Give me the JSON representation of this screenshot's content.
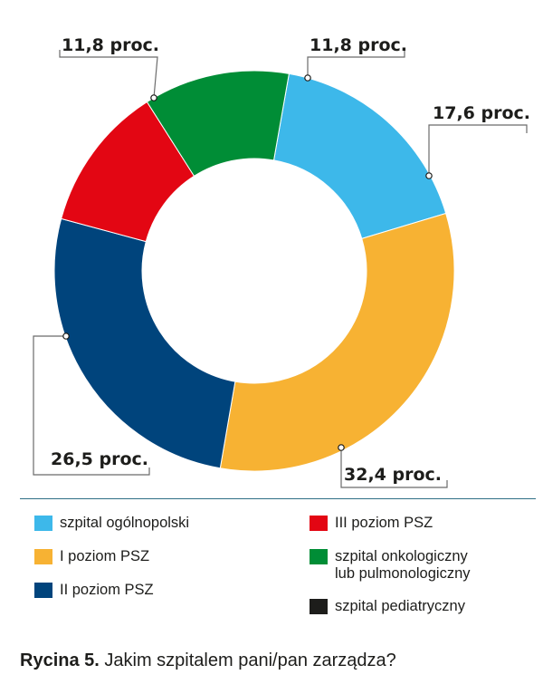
{
  "chart_data": {
    "type": "pie",
    "variant": "donut",
    "slices": [
      {
        "name": "szpital ogólnopolski",
        "value": 17.6,
        "label": "17,6 proc.",
        "color": "#3db8ea"
      },
      {
        "name": "I poziom PSZ",
        "value": 32.4,
        "label": "32,4 proc.",
        "color": "#f7b233"
      },
      {
        "name": "II poziom PSZ",
        "value": 26.5,
        "label": "26,5 proc.",
        "color": "#00447c"
      },
      {
        "name": "III poziom PSZ",
        "value": 11.8,
        "label": "11,8 proc.",
        "color": "#e30613"
      },
      {
        "name": "szpital onkologiczny\nlub pulmonologiczny",
        "value": 11.8,
        "label": "11,8 proc.",
        "color": "#008d36"
      },
      {
        "name": "szpital pediatryczny",
        "value": 0,
        "label": "",
        "color": "#1d1d1b"
      }
    ],
    "legend_position": "bottom"
  },
  "legend": [
    {
      "label": "szpital ogólnopolski",
      "color": "#3db8ea"
    },
    {
      "label": "III poziom PSZ",
      "color": "#e30613"
    },
    {
      "label": "I poziom PSZ",
      "color": "#f7b233"
    },
    {
      "label": "szpital onkologiczny\nlub pulmonologiczny",
      "color": "#008d36"
    },
    {
      "label": "II poziom PSZ",
      "color": "#00447c"
    },
    {
      "label": "szpital pediatryczny",
      "color": "#1d1d1b"
    }
  ],
  "caption": {
    "prefix": "Rycina 5.",
    "text": " Jakim szpitalem pani/pan zarządza?"
  }
}
